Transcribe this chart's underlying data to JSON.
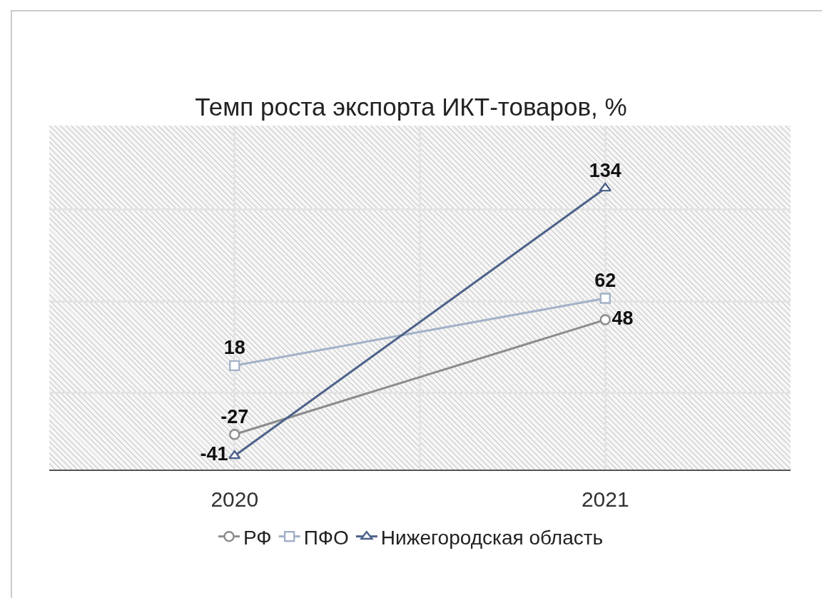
{
  "chart_data": {
    "type": "line",
    "title": "Темп роста экспорта ИКТ-товаров, %",
    "categories": [
      "2020",
      "2021"
    ],
    "series": [
      {
        "name": "РФ",
        "color": "#8c8c8c",
        "marker": "circle",
        "values": [
          -27,
          48
        ]
      },
      {
        "name": "ПФО",
        "color": "#a3b1c8",
        "marker": "square",
        "values": [
          18,
          62
        ]
      },
      {
        "name": "Нижегородская область",
        "color": "#4d628a",
        "marker": "triangle",
        "values": [
          -41,
          134
        ]
      }
    ],
    "ylim": [
      -50,
      175
    ],
    "yticks": [
      {
        "value": 0,
        "label": null
      },
      {
        "value": 60,
        "label": null
      },
      {
        "value": 120,
        "label": null
      }
    ],
    "tick_labels": "x",
    "grid": true,
    "legend": "bottom",
    "line_style": "solid",
    "data_labels": true
  }
}
